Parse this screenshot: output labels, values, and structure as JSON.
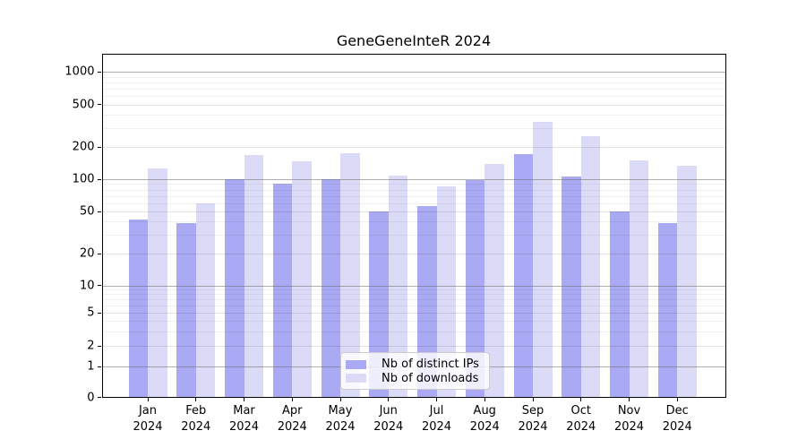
{
  "chart_data": {
    "type": "bar",
    "title": "GeneGeneInteR 2024",
    "categories": [
      "Jan",
      "Feb",
      "Mar",
      "Apr",
      "May",
      "Jun",
      "Jul",
      "Aug",
      "Sep",
      "Oct",
      "Nov",
      "Dec"
    ],
    "x_sublabel": "2024",
    "series": [
      {
        "name": "Nb of distinct IPs",
        "color": "#a9a9f4",
        "values": [
          42,
          39,
          100,
          91,
          100,
          50,
          56,
          99,
          170,
          106,
          50,
          39
        ]
      },
      {
        "name": "Nb of downloads",
        "color": "#dbdbf8",
        "values": [
          127,
          60,
          168,
          147,
          175,
          108,
          85,
          140,
          345,
          250,
          150,
          133
        ]
      }
    ],
    "y_ticks": [
      0,
      1,
      2,
      5,
      10,
      20,
      50,
      100,
      200,
      500,
      1000
    ],
    "y_scale": "log-like (log above 1, 0 pinned to baseline)",
    "ylim": [
      0,
      1000
    ],
    "xlabel": "",
    "ylabel": "",
    "grid": true,
    "legend_position": "lower center",
    "colors": {
      "bar_distinct_ips": "#a9a9f4",
      "bar_downloads": "#dbdbf8",
      "grid_major": "#6e6e6e",
      "grid_minor": "#dddddd",
      "axis": "#000000",
      "background": "#ffffff"
    }
  }
}
